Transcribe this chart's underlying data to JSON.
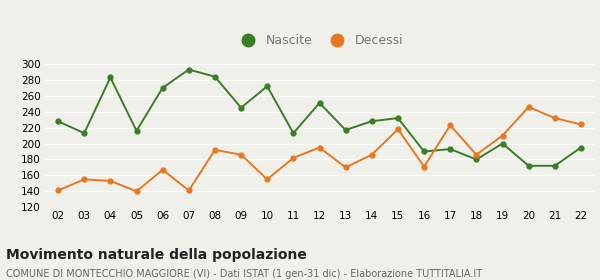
{
  "years": [
    "02",
    "03",
    "04",
    "05",
    "06",
    "07",
    "08",
    "09",
    "10",
    "11",
    "12",
    "13",
    "14",
    "15",
    "16",
    "17",
    "18",
    "19",
    "20",
    "21",
    "22"
  ],
  "nascite": [
    228,
    213,
    283,
    216,
    270,
    293,
    284,
    245,
    272,
    213,
    251,
    217,
    228,
    232,
    190,
    193,
    180,
    200,
    172,
    172,
    195
  ],
  "decessi": [
    141,
    155,
    153,
    140,
    167,
    141,
    192,
    186,
    155,
    182,
    195,
    170,
    186,
    218,
    171,
    223,
    186,
    210,
    246,
    232,
    224
  ],
  "nascite_color": "#3a7d27",
  "decessi_color": "#e87722",
  "background_color": "#f0f0eb",
  "grid_color": "#ffffff",
  "ylim": [
    120,
    310
  ],
  "yticks": [
    120,
    140,
    160,
    180,
    200,
    220,
    240,
    260,
    280,
    300
  ],
  "title": "Movimento naturale della popolazione",
  "subtitle": "COMUNE DI MONTECCHIO MAGGIORE (VI) - Dati ISTAT (1 gen-31 dic) - Elaborazione TUTTITALIA.IT",
  "legend_nascite": "Nascite",
  "legend_decessi": "Decessi",
  "title_fontsize": 10,
  "subtitle_fontsize": 7
}
